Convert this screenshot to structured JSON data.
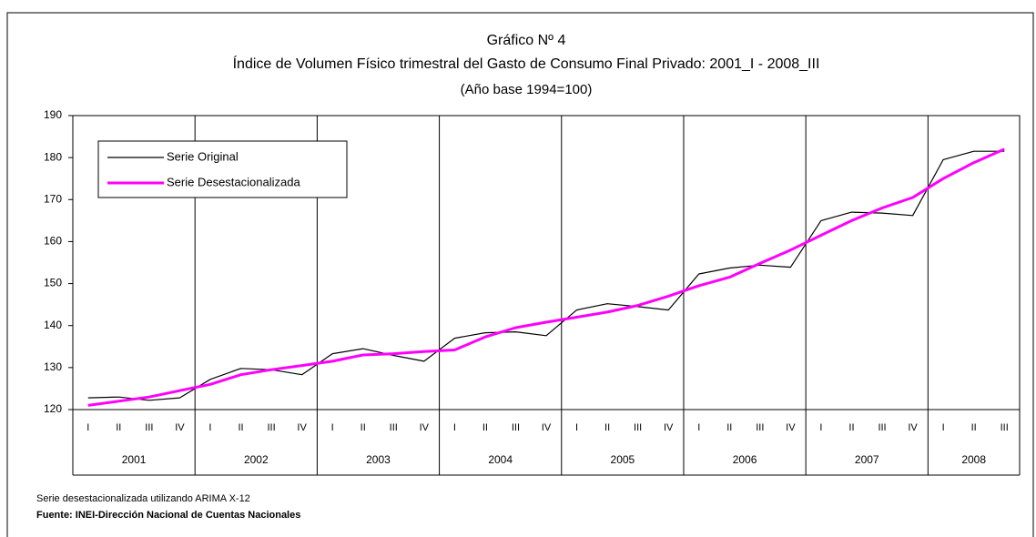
{
  "chart_data": {
    "type": "line",
    "title": "Gráfico Nº 4",
    "subtitle": "Índice de Volumen Físico trimestral del Gasto de Consumo Final Privado: 2001_I - 2008_III",
    "subtitle2": "(Año base 1994=100)",
    "categories": [
      "I",
      "II",
      "III",
      "IV",
      "I",
      "II",
      "III",
      "IV",
      "I",
      "II",
      "III",
      "IV",
      "I",
      "II",
      "III",
      "IV",
      "I",
      "II",
      "III",
      "IV",
      "I",
      "II",
      "III",
      "IV",
      "I",
      "II",
      "III",
      "IV",
      "I",
      "II",
      "III"
    ],
    "years": [
      "2001",
      "2002",
      "2003",
      "2004",
      "2005",
      "2006",
      "2007",
      "2008"
    ],
    "series": [
      {
        "name": "Serie Original",
        "color": "#000000",
        "values": [
          122.8,
          123.0,
          122.2,
          122.8,
          127.2,
          129.8,
          129.5,
          128.3,
          133.3,
          134.5,
          132.9,
          131.5,
          137.0,
          138.3,
          138.5,
          137.6,
          143.7,
          145.2,
          144.5,
          143.7,
          152.3,
          153.7,
          154.4,
          153.9,
          165.0,
          167.0,
          166.8,
          166.2,
          179.5,
          181.5,
          181.5
        ]
      },
      {
        "name": "Serie Desestacionalizada",
        "color": "#ff00ff",
        "values": [
          121.0,
          122.0,
          123.0,
          124.5,
          126.0,
          128.3,
          129.5,
          130.5,
          131.5,
          133.0,
          133.3,
          133.8,
          134.2,
          137.3,
          139.5,
          140.8,
          142.0,
          143.2,
          144.8,
          147.0,
          149.5,
          151.5,
          154.8,
          158.0,
          161.5,
          165.0,
          168.0,
          170.5,
          175.0,
          178.8,
          182.0
        ]
      }
    ],
    "ylim": [
      120,
      190
    ],
    "yticks": [
      120,
      130,
      140,
      150,
      160,
      170,
      180,
      190
    ],
    "legend": "upper left",
    "notes": [
      "Serie desestacionalizada utilizando ARIMA X-12",
      "Fuente: INEI-Dirección Nacional de Cuentas Nacionales"
    ]
  }
}
